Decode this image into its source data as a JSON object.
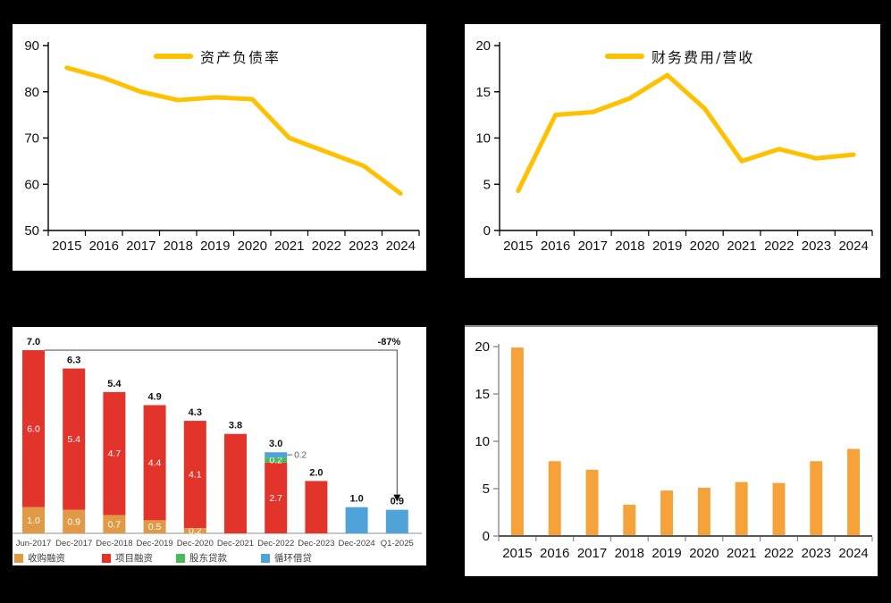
{
  "page": {
    "background": "#000000",
    "panel_background": "#ffffff"
  },
  "chart_data": [
    {
      "id": "debt-ratio",
      "type": "line",
      "title": "资产负债率",
      "legend_position": "top-center",
      "grid": false,
      "color": "#FFC000",
      "categories": [
        "2015",
        "2016",
        "2017",
        "2018",
        "2019",
        "2020",
        "2021",
        "2022",
        "2023",
        "2024"
      ],
      "values": [
        85.2,
        83.0,
        80.0,
        78.2,
        78.8,
        78.4,
        70.0,
        67.0,
        64.0,
        58.0
      ],
      "ylim": [
        50,
        90
      ],
      "yticks": [
        50,
        60,
        70,
        80,
        90
      ]
    },
    {
      "id": "finance-expense-ratio",
      "type": "line",
      "title": "财务费用/营收",
      "legend_position": "top-center",
      "grid": false,
      "color": "#FFC000",
      "categories": [
        "2015",
        "2016",
        "2017",
        "2018",
        "2019",
        "2020",
        "2021",
        "2022",
        "2023",
        "2024"
      ],
      "values": [
        4.3,
        12.5,
        12.8,
        14.3,
        16.8,
        13.2,
        7.5,
        8.8,
        7.8,
        8.2
      ],
      "ylim": [
        0,
        20
      ],
      "yticks": [
        0,
        5,
        10,
        15,
        20
      ]
    },
    {
      "id": "financing-structure",
      "type": "stacked_bar",
      "grid": false,
      "legend_position": "bottom-left",
      "annotation": "-87%",
      "scale_max": 7.0,
      "categories": [
        "Jun-2017",
        "Dec-2017",
        "Dec-2018",
        "Dec-2019",
        "Dec-2020",
        "Dec-2021",
        "Dec-2022",
        "Dec-2023",
        "Dec-2024",
        "Q1-2025"
      ],
      "series": [
        {
          "name": "收购融资",
          "color": "#E09A45",
          "values": [
            1.0,
            0.9,
            0.7,
            0.5,
            0.2,
            0,
            0,
            0,
            0,
            0
          ]
        },
        {
          "name": "项目融资",
          "color": "#E3342B",
          "values": [
            6.0,
            5.4,
            4.7,
            4.4,
            4.1,
            3.8,
            2.7,
            2.0,
            0,
            0
          ]
        },
        {
          "name": "股东贷款",
          "color": "#4CB85C",
          "values": [
            0,
            0,
            0,
            0,
            0,
            0,
            0.2,
            0,
            0,
            0
          ]
        },
        {
          "name": "循环借贷",
          "color": "#4FA3D9",
          "values": [
            0,
            0,
            0,
            0,
            0,
            0,
            0.2,
            0,
            1.0,
            0.9
          ]
        }
      ],
      "totals": [
        "7.0",
        "6.3",
        "5.4",
        "4.9",
        "4.3",
        "3.8",
        "3.0",
        "2.0",
        "1.0",
        "0.9"
      ],
      "bars": [
        {
          "category": "Jun-2017",
          "total": "7.0",
          "segments": [
            {
              "s": 0,
              "v": 1.0,
              "label": "1.0"
            },
            {
              "s": 1,
              "v": 6.0,
              "label": "6.0"
            }
          ]
        },
        {
          "category": "Dec-2017",
          "total": "6.3",
          "segments": [
            {
              "s": 0,
              "v": 0.9,
              "label": "0.9"
            },
            {
              "s": 1,
              "v": 5.4,
              "label": "5.4"
            }
          ]
        },
        {
          "category": "Dec-2018",
          "total": "5.4",
          "segments": [
            {
              "s": 0,
              "v": 0.7,
              "label": "0.7"
            },
            {
              "s": 1,
              "v": 4.7,
              "label": "4.7"
            }
          ]
        },
        {
          "category": "Dec-2019",
          "total": "4.9",
          "segments": [
            {
              "s": 0,
              "v": 0.5,
              "label": "0.5"
            },
            {
              "s": 1,
              "v": 4.4,
              "label": "4.4"
            }
          ]
        },
        {
          "category": "Dec-2020",
          "total": "4.3",
          "segments": [
            {
              "s": 0,
              "v": 0.2,
              "label": "0.2"
            },
            {
              "s": 1,
              "v": 4.1,
              "label": "4.1"
            }
          ]
        },
        {
          "category": "Dec-2021",
          "total": "3.8",
          "segments": [
            {
              "s": 1,
              "v": 3.8
            }
          ]
        },
        {
          "category": "Dec-2022",
          "total": "3.0",
          "segments": [
            {
              "s": 1,
              "v": 2.7,
              "label": "2.7"
            },
            {
              "s": 2,
              "v": 0.2,
              "label": "0.2"
            },
            {
              "s": 3,
              "v": 0.2,
              "label_outside": "0.2"
            }
          ]
        },
        {
          "category": "Dec-2023",
          "total": "2.0",
          "segments": [
            {
              "s": 1,
              "v": 2.0
            }
          ]
        },
        {
          "category": "Dec-2024",
          "total": "1.0",
          "segments": [
            {
              "s": 3,
              "v": 1.0
            }
          ]
        },
        {
          "category": "Q1-2025",
          "total": "0.9",
          "segments": [
            {
              "s": 3,
              "v": 0.9
            }
          ]
        }
      ]
    },
    {
      "id": "dividend",
      "type": "bar",
      "grid": false,
      "color": "#F6A23A",
      "categories": [
        "2015",
        "2016",
        "2017",
        "2018",
        "2019",
        "2020",
        "2021",
        "2022",
        "2023",
        "2024"
      ],
      "values": [
        19.9,
        7.9,
        7.0,
        3.3,
        4.8,
        5.1,
        5.7,
        5.6,
        7.9,
        9.2
      ],
      "ylim": [
        0,
        20
      ],
      "yticks": [
        0,
        5,
        10,
        15,
        20
      ]
    }
  ]
}
